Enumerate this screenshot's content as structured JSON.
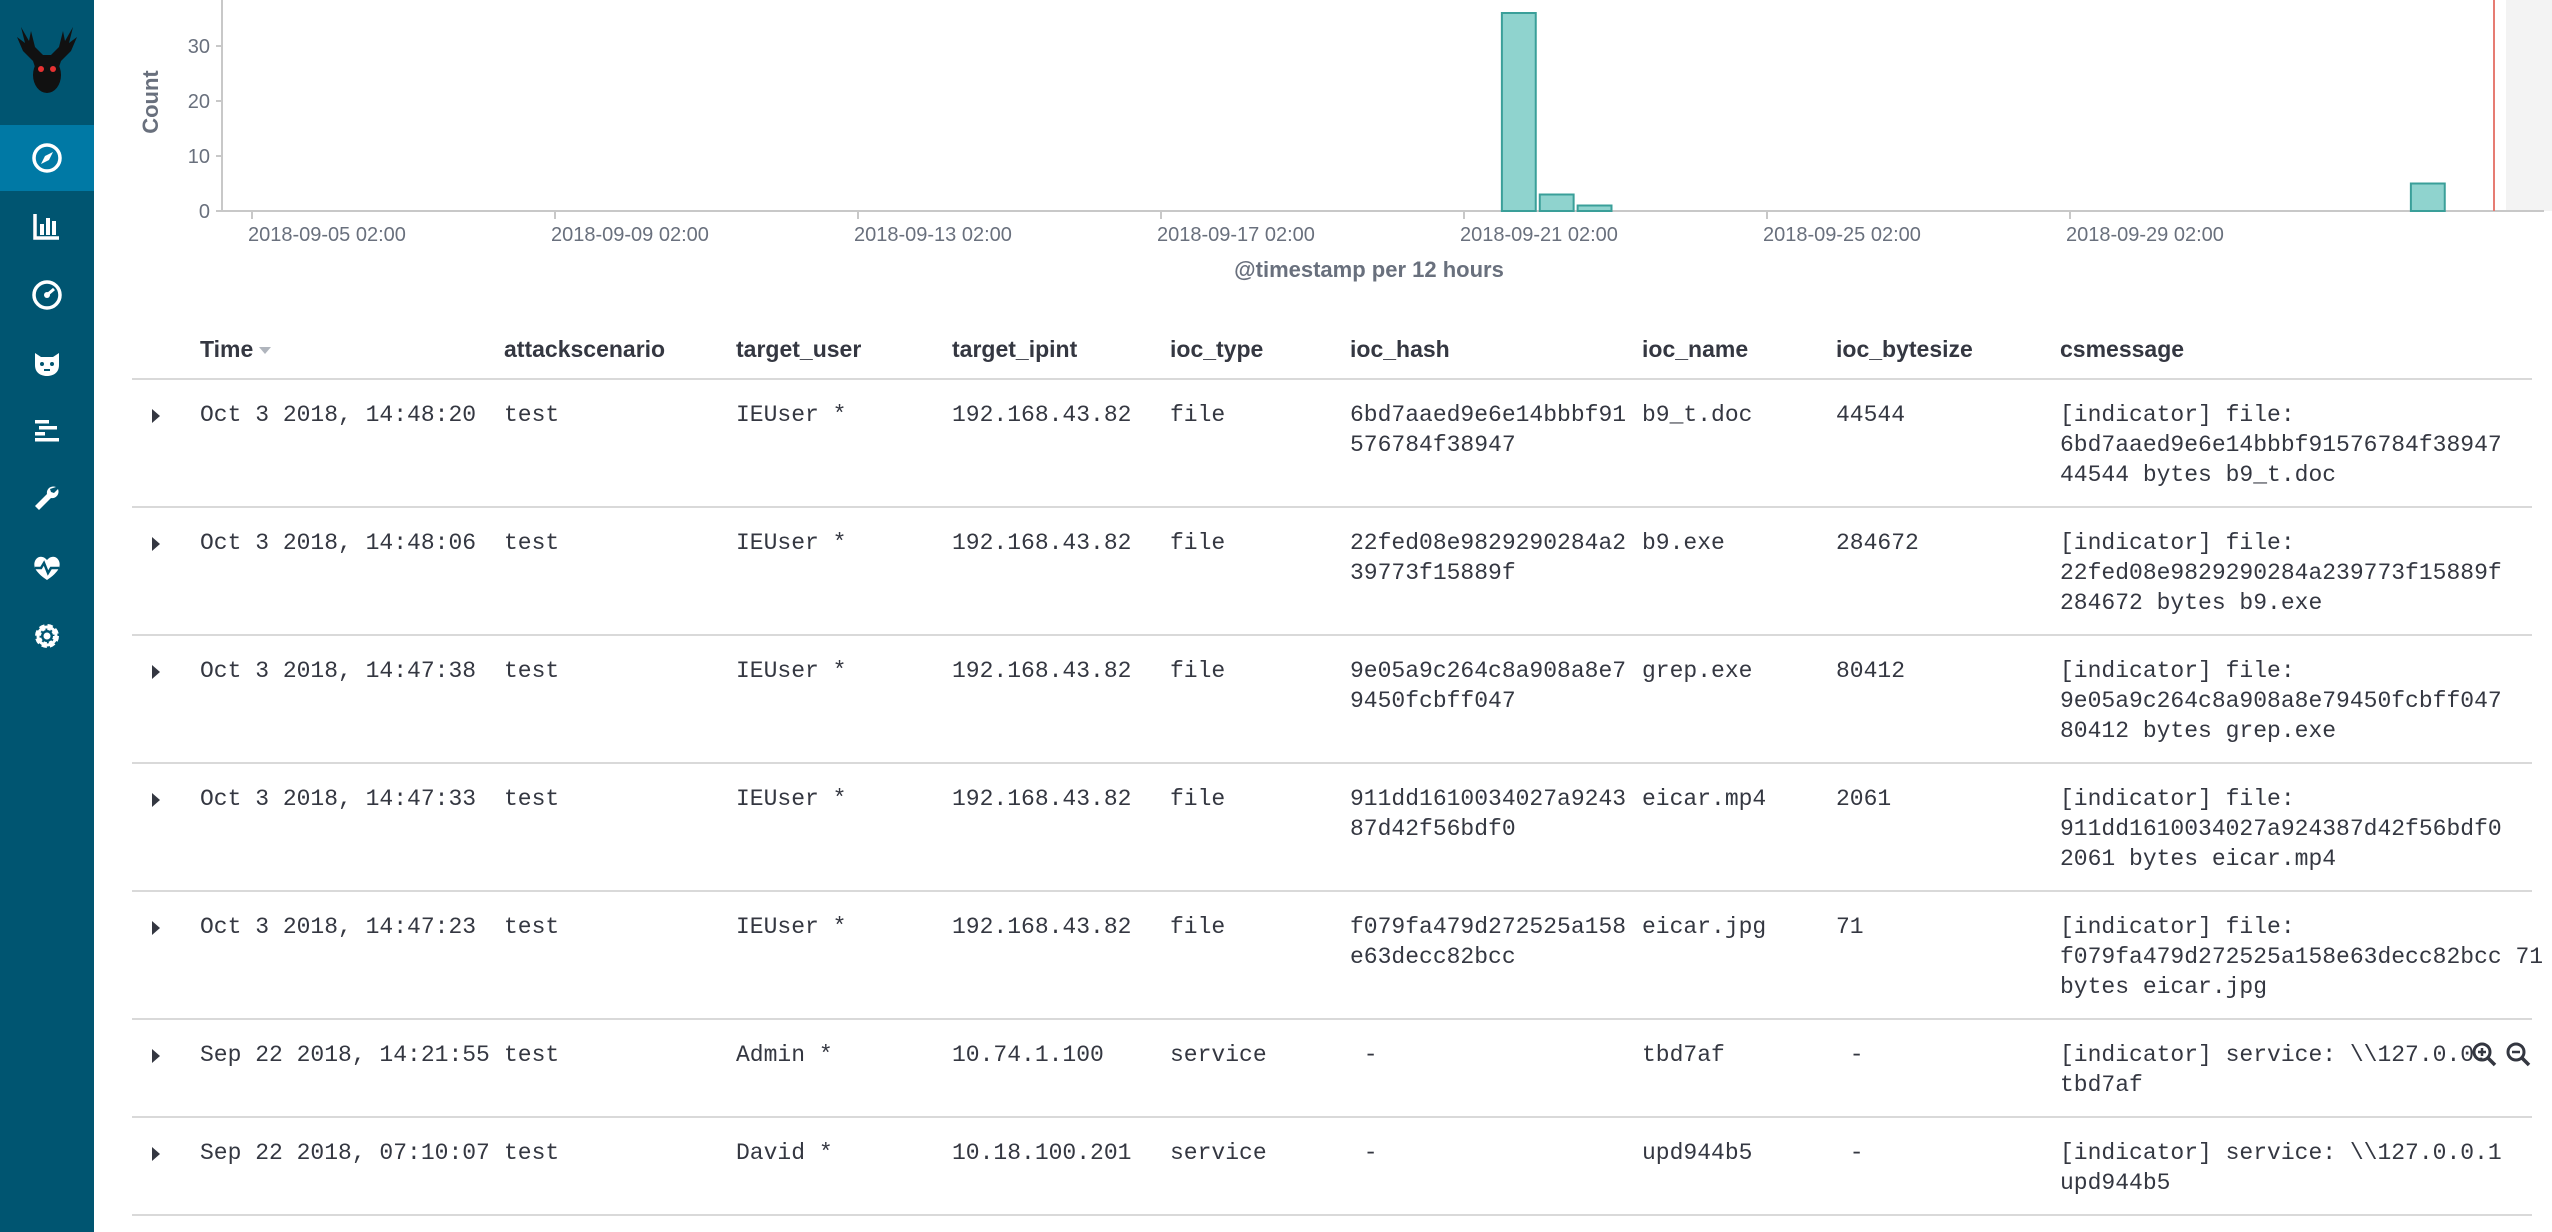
{
  "colors": {
    "sidebar": "#005571",
    "active": "#0079a5",
    "bar": "#8fd3ce",
    "bar_stroke": "#3a9f99",
    "marker": "#e67c73"
  },
  "sidebar": {
    "items": [
      {
        "icon": "discover-compass-icon",
        "active": true
      },
      {
        "icon": "visualize-bar-chart-icon",
        "active": false
      },
      {
        "icon": "dashboard-gauge-icon",
        "active": false
      },
      {
        "icon": "bear-face-icon",
        "active": false
      },
      {
        "icon": "timeline-bars-icon",
        "active": false
      },
      {
        "icon": "wrench-icon",
        "active": false
      },
      {
        "icon": "heartbeat-icon",
        "active": false
      },
      {
        "icon": "gear-icon",
        "active": false
      }
    ]
  },
  "chart_data": {
    "type": "bar",
    "ylabel": "Count",
    "xlabel": "@timestamp per 12 hours",
    "ylim": [
      0,
      38
    ],
    "yticks": [
      "0",
      "10",
      "20",
      "30"
    ],
    "xticks": [
      "2018-09-05 02:00",
      "2018-09-09 02:00",
      "2018-09-13 02:00",
      "2018-09-17 02:00",
      "2018-09-21 02:00",
      "2018-09-25 02:00",
      "2018-09-29 02:00"
    ],
    "bars": [
      {
        "x": "2018-09-21 14:00",
        "value": 36
      },
      {
        "x": "2018-09-22 02:00",
        "value": 3
      },
      {
        "x": "2018-09-22 14:00",
        "value": 1
      },
      {
        "x": "2018-10-03 14:00",
        "value": 5
      }
    ],
    "marker_line": "now"
  },
  "table": {
    "columns": [
      {
        "key": "time",
        "label": "Time",
        "sorted": true
      },
      {
        "key": "attackscenario",
        "label": "attackscenario"
      },
      {
        "key": "target_user",
        "label": "target_user"
      },
      {
        "key": "target_ipint",
        "label": "target_ipint"
      },
      {
        "key": "ioc_type",
        "label": "ioc_type"
      },
      {
        "key": "ioc_hash",
        "label": "ioc_hash"
      },
      {
        "key": "ioc_name",
        "label": "ioc_name"
      },
      {
        "key": "ioc_bytesize",
        "label": "ioc_bytesize"
      },
      {
        "key": "csmessage",
        "label": "csmessage"
      }
    ],
    "rows": [
      {
        "time": "Oct 3 2018, 14:48:20",
        "attackscenario": "test",
        "target_user": "IEUser *",
        "target_ipint": "192.168.43.82",
        "ioc_type": "file",
        "ioc_hash": "6bd7aaed9e6e14bbbf91\n576784f38947",
        "ioc_name": "b9_t.doc",
        "ioc_bytesize": "44544",
        "csmessage": "[indicator] file:\n6bd7aaed9e6e14bbbf91576784f38947\n44544 bytes b9_t.doc"
      },
      {
        "time": "Oct 3 2018, 14:48:06",
        "attackscenario": "test",
        "target_user": "IEUser *",
        "target_ipint": "192.168.43.82",
        "ioc_type": "file",
        "ioc_hash": "22fed08e9829290284a2\n39773f15889f",
        "ioc_name": "b9.exe",
        "ioc_bytesize": "284672",
        "csmessage": "[indicator] file:\n22fed08e9829290284a239773f15889f\n284672 bytes b9.exe"
      },
      {
        "time": "Oct 3 2018, 14:47:38",
        "attackscenario": "test",
        "target_user": "IEUser *",
        "target_ipint": "192.168.43.82",
        "ioc_type": "file",
        "ioc_hash": "9e05a9c264c8a908a8e7\n9450fcbff047",
        "ioc_name": "grep.exe",
        "ioc_bytesize": "80412",
        "csmessage": "[indicator] file:\n9e05a9c264c8a908a8e79450fcbff047\n80412 bytes grep.exe"
      },
      {
        "time": "Oct 3 2018, 14:47:33",
        "attackscenario": "test",
        "target_user": "IEUser *",
        "target_ipint": "192.168.43.82",
        "ioc_type": "file",
        "ioc_hash": "911dd1610034027a9243\n87d42f56bdf0",
        "ioc_name": "eicar.mp4",
        "ioc_bytesize": "2061",
        "csmessage": "[indicator] file:\n911dd1610034027a924387d42f56bdf0\n2061 bytes eicar.mp4"
      },
      {
        "time": "Oct 3 2018, 14:47:23",
        "attackscenario": "test",
        "target_user": "IEUser *",
        "target_ipint": "192.168.43.82",
        "ioc_type": "file",
        "ioc_hash": "f079fa479d272525a158\ne63decc82bcc",
        "ioc_name": "eicar.jpg",
        "ioc_bytesize": "71",
        "csmessage": "[indicator] file:\nf079fa479d272525a158e63decc82bcc 71\nbytes eicar.jpg"
      },
      {
        "time": "Sep 22 2018, 14:21:55",
        "attackscenario": "test",
        "target_user": "Admin *",
        "target_ipint": "10.74.1.100",
        "ioc_type": "service",
        "ioc_hash": " -",
        "ioc_name": "tbd7af",
        "ioc_bytesize": " -",
        "csmessage": "[indicator] service: \\\\127.0.0.\ntbd7af",
        "show_filter_icons": true
      },
      {
        "time": "Sep 22 2018, 07:10:07",
        "attackscenario": "test",
        "target_user": "David *",
        "target_ipint": "10.18.100.201",
        "ioc_type": "service",
        "ioc_hash": " -",
        "ioc_name": "upd944b5",
        "ioc_bytesize": " -",
        "csmessage": "[indicator] service: \\\\127.0.0.1\nupd944b5"
      }
    ]
  }
}
